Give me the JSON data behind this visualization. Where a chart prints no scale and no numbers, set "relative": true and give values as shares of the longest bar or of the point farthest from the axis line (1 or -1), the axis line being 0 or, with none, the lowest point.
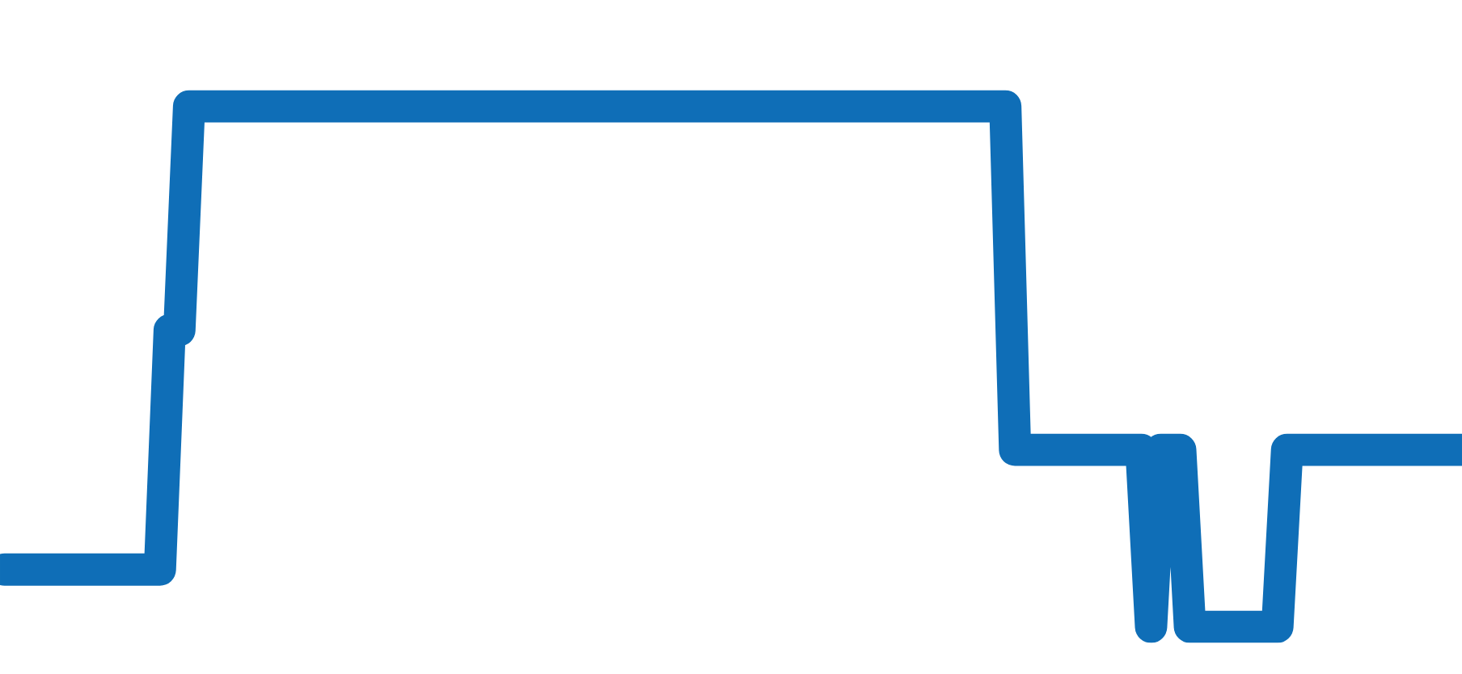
{
  "chart_data": {
    "type": "line",
    "relative": true,
    "line_style": "solid",
    "marker": "none",
    "categories": [
      null,
      null,
      null,
      null,
      null,
      null,
      null,
      null,
      null,
      null,
      null,
      null,
      null,
      null,
      null,
      null,
      null,
      null,
      null,
      null,
      null,
      null,
      null,
      null,
      null,
      null,
      null,
      null,
      null,
      null,
      null,
      null,
      null,
      null,
      null,
      null,
      null,
      null,
      null,
      null,
      null,
      null,
      null,
      null,
      null,
      null,
      null,
      null,
      null,
      null,
      null,
      null,
      null,
      null,
      null,
      null,
      null,
      null,
      null,
      null,
      null,
      null,
      null,
      null,
      null,
      null,
      null,
      null,
      null,
      null,
      null,
      null,
      null,
      null,
      null,
      null,
      null,
      null,
      null,
      null,
      null,
      null,
      null,
      null,
      null,
      null,
      null,
      null,
      null,
      null,
      null,
      null,
      null,
      null,
      null,
      null,
      null,
      null,
      null,
      null,
      null,
      null,
      null,
      null,
      null,
      null,
      null,
      null,
      null,
      null,
      null,
      null,
      null,
      null,
      null,
      null,
      null,
      null,
      null,
      null,
      null,
      null,
      null,
      null,
      null,
      null,
      null,
      null,
      null,
      null,
      null,
      null,
      null,
      null,
      null,
      null,
      null,
      null,
      null,
      null,
      null,
      null,
      null,
      null,
      null,
      null,
      null,
      null,
      null,
      null,
      null
    ],
    "series": [
      {
        "color": "#0f6eb7",
        "values": [
          0.11,
          0.11,
          0.11,
          0.11,
          0.11,
          0.11,
          0.11,
          0.11,
          0.11,
          0.11,
          0.11,
          0.11,
          0.11,
          0.11,
          0.11,
          0.11,
          0.11,
          0.57,
          0.57,
          1,
          1,
          1,
          1,
          1,
          1,
          1,
          1,
          1,
          1,
          1,
          1,
          1,
          1,
          1,
          1,
          1,
          1,
          1,
          1,
          1,
          1,
          1,
          1,
          1,
          1,
          1,
          1,
          1,
          1,
          1,
          1,
          1,
          1,
          1,
          1,
          1,
          1,
          1,
          1,
          1,
          1,
          1,
          1,
          1,
          1,
          1,
          1,
          1,
          1,
          1,
          1,
          1,
          1,
          1,
          1,
          1,
          1,
          1,
          1,
          1,
          1,
          1,
          1,
          1,
          1,
          1,
          1,
          1,
          1,
          1,
          1,
          1,
          1,
          1,
          1,
          1,
          1,
          1,
          1,
          1,
          1,
          1,
          1,
          1,
          0.34,
          0.34,
          0.34,
          0.34,
          0.34,
          0.34,
          0.34,
          0.34,
          0.34,
          0.34,
          0.34,
          0.34,
          0.34,
          0.34,
          0,
          0.34,
          0.34,
          0.34,
          0,
          0,
          0,
          0,
          0,
          0,
          0,
          0,
          0,
          0,
          0.34,
          0.34,
          0.34,
          0.34,
          0.34,
          0.34,
          0.34,
          0.34,
          0.34,
          0.34,
          0.34,
          0.34,
          0.34,
          0.34,
          0.34,
          0.34,
          0.34,
          0.34,
          0.34
        ]
      }
    ]
  }
}
